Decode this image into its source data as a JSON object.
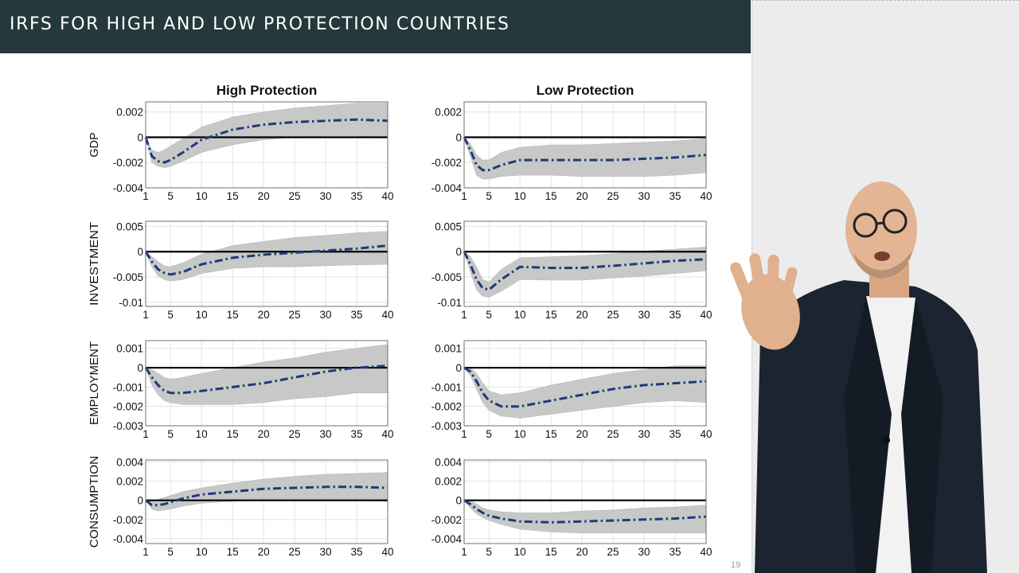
{
  "slide": {
    "title": "IRFS FOR HIGH AND LOW PROTECTION COUNTRIES",
    "page_number": "19"
  },
  "colors": {
    "title_bar": "#25393c",
    "irf_line": "#1f3a78",
    "band": "#c8c8c8",
    "zero_line": "#000000",
    "presenter_bg": "#ececec"
  },
  "chart_data": [
    {
      "type": "line",
      "column_title": "High Protection",
      "ylabel": "GDP",
      "x": [
        1,
        2,
        3,
        4,
        5,
        7,
        10,
        15,
        20,
        25,
        30,
        35,
        40
      ],
      "series": [
        {
          "role": "irf",
          "values": [
            0,
            -0.0015,
            -0.0019,
            -0.002,
            -0.0018,
            -0.0012,
            -0.0002,
            0.0006,
            0.001,
            0.0012,
            0.0013,
            0.0014,
            0.0013
          ]
        },
        {
          "role": "band_upper",
          "values": [
            0,
            -0.001,
            -0.0012,
            -0.001,
            -0.0007,
            -0.0001,
            0.0008,
            0.0016,
            0.002,
            0.0023,
            0.0025,
            0.0027,
            0.0027
          ]
        },
        {
          "role": "band_lower",
          "values": [
            0,
            -0.002,
            -0.0023,
            -0.0024,
            -0.0023,
            -0.0019,
            -0.0012,
            -0.0006,
            -0.0002,
            0.0,
            0.0001,
            0.0001,
            0.0
          ]
        }
      ],
      "yticks": [
        -0.004,
        -0.002,
        0,
        0.002
      ],
      "ylim": [
        -0.004,
        0.0028
      ],
      "xticks": [
        1,
        5,
        10,
        15,
        20,
        25,
        30,
        35,
        40
      ],
      "xlim": [
        1,
        40
      ],
      "grid": true
    },
    {
      "type": "line",
      "column_title": "Low Protection",
      "ylabel": "",
      "x": [
        1,
        2,
        3,
        4,
        5,
        7,
        10,
        15,
        20,
        25,
        30,
        35,
        40
      ],
      "series": [
        {
          "role": "irf",
          "values": [
            0,
            -0.001,
            -0.0022,
            -0.0026,
            -0.0026,
            -0.0022,
            -0.0018,
            -0.0018,
            -0.0018,
            -0.0018,
            -0.0017,
            -0.0016,
            -0.0014
          ]
        },
        {
          "role": "band_upper",
          "values": [
            0,
            -0.0005,
            -0.0014,
            -0.0018,
            -0.0018,
            -0.0012,
            -0.0008,
            -0.0006,
            -0.0006,
            -0.0005,
            -0.0004,
            -0.0003,
            -0.0001
          ]
        },
        {
          "role": "band_lower",
          "values": [
            0,
            -0.0015,
            -0.003,
            -0.0033,
            -0.0033,
            -0.0031,
            -0.003,
            -0.003,
            -0.0031,
            -0.0031,
            -0.0031,
            -0.003,
            -0.0028
          ]
        }
      ],
      "yticks": [
        -0.004,
        -0.002,
        0,
        0.002
      ],
      "ylim": [
        -0.004,
        0.0028
      ],
      "xticks": [
        1,
        5,
        10,
        15,
        20,
        25,
        30,
        35,
        40
      ],
      "xlim": [
        1,
        40
      ],
      "grid": true
    },
    {
      "type": "line",
      "column_title": "",
      "ylabel": "INVESTMENT",
      "x": [
        1,
        2,
        3,
        4,
        5,
        7,
        10,
        15,
        20,
        25,
        30,
        35,
        40
      ],
      "series": [
        {
          "role": "irf",
          "values": [
            0,
            -0.002,
            -0.0035,
            -0.0042,
            -0.0045,
            -0.004,
            -0.0025,
            -0.0012,
            -0.0006,
            -0.0002,
            0.0002,
            0.0006,
            0.0012
          ]
        },
        {
          "role": "band_upper",
          "values": [
            0,
            -0.001,
            -0.002,
            -0.0028,
            -0.003,
            -0.0022,
            -0.0005,
            0.0012,
            0.002,
            0.0028,
            0.0032,
            0.0037,
            0.004
          ]
        },
        {
          "role": "band_lower",
          "values": [
            0,
            -0.003,
            -0.0048,
            -0.0055,
            -0.0058,
            -0.0055,
            -0.0043,
            -0.0033,
            -0.003,
            -0.003,
            -0.0028,
            -0.0026,
            -0.0025
          ]
        }
      ],
      "yticks": [
        -0.01,
        -0.005,
        0,
        0.005
      ],
      "ylim": [
        -0.0108,
        0.006
      ],
      "xticks": [
        1,
        5,
        10,
        15,
        20,
        25,
        30,
        35,
        40
      ],
      "xlim": [
        1,
        40
      ],
      "grid": true
    },
    {
      "type": "line",
      "column_title": "",
      "ylabel": "",
      "x": [
        1,
        2,
        3,
        4,
        5,
        7,
        10,
        15,
        20,
        25,
        30,
        35,
        40
      ],
      "series": [
        {
          "role": "irf",
          "values": [
            0,
            -0.0025,
            -0.0055,
            -0.0072,
            -0.0075,
            -0.0055,
            -0.003,
            -0.0032,
            -0.0032,
            -0.0028,
            -0.0023,
            -0.0018,
            -0.0015
          ]
        },
        {
          "role": "band_upper",
          "values": [
            0,
            -0.001,
            -0.003,
            -0.0055,
            -0.006,
            -0.0035,
            -0.0012,
            -0.001,
            -0.0008,
            -0.0004,
            0.0001,
            0.0005,
            0.0009
          ]
        },
        {
          "role": "band_lower",
          "values": [
            0,
            -0.004,
            -0.0075,
            -0.0088,
            -0.009,
            -0.0078,
            -0.0055,
            -0.0056,
            -0.0056,
            -0.0052,
            -0.0048,
            -0.0043,
            -0.0038
          ]
        }
      ],
      "yticks": [
        -0.01,
        -0.005,
        0,
        0.005
      ],
      "ylim": [
        -0.0108,
        0.006
      ],
      "xticks": [
        1,
        5,
        10,
        15,
        20,
        25,
        30,
        35,
        40
      ],
      "xlim": [
        1,
        40
      ],
      "grid": true
    },
    {
      "type": "line",
      "column_title": "",
      "ylabel": "EMPLOYMENT",
      "x": [
        1,
        2,
        3,
        4,
        5,
        7,
        10,
        15,
        20,
        25,
        30,
        35,
        40
      ],
      "series": [
        {
          "role": "irf",
          "values": [
            0,
            -0.0005,
            -0.0009,
            -0.0012,
            -0.0013,
            -0.0013,
            -0.0012,
            -0.001,
            -0.0008,
            -0.0005,
            -0.0002,
            0.0,
            0.0001
          ]
        },
        {
          "role": "band_upper",
          "values": [
            0,
            -0.0001,
            -0.0003,
            -0.0005,
            -0.0006,
            -0.0005,
            -0.0003,
            0.0,
            0.0003,
            0.0005,
            0.0008,
            0.001,
            0.0012
          ]
        },
        {
          "role": "band_lower",
          "values": [
            0,
            -0.0009,
            -0.0014,
            -0.0017,
            -0.0018,
            -0.0019,
            -0.0019,
            -0.0019,
            -0.0018,
            -0.0016,
            -0.0015,
            -0.0013,
            -0.0013
          ]
        }
      ],
      "yticks": [
        -0.003,
        -0.002,
        -0.001,
        0,
        0.001
      ],
      "ylim": [
        -0.003,
        0.0014
      ],
      "xticks": [
        1,
        5,
        10,
        15,
        20,
        25,
        30,
        35,
        40
      ],
      "xlim": [
        1,
        40
      ],
      "grid": true
    },
    {
      "type": "line",
      "column_title": "",
      "ylabel": "",
      "x": [
        1,
        2,
        3,
        4,
        5,
        7,
        10,
        15,
        20,
        25,
        30,
        35,
        40
      ],
      "series": [
        {
          "role": "irf",
          "values": [
            0,
            -0.0002,
            -0.0007,
            -0.0013,
            -0.0017,
            -0.002,
            -0.002,
            -0.0017,
            -0.0014,
            -0.0011,
            -0.0009,
            -0.0008,
            -0.0007
          ]
        },
        {
          "role": "band_upper",
          "values": [
            0,
            0.0,
            -0.0003,
            -0.0008,
            -0.0012,
            -0.0014,
            -0.0013,
            -0.0009,
            -0.0006,
            -0.0003,
            -0.0001,
            0.0001,
            0.0001
          ]
        },
        {
          "role": "band_lower",
          "values": [
            0,
            -0.0004,
            -0.0011,
            -0.0018,
            -0.0022,
            -0.0025,
            -0.0026,
            -0.0024,
            -0.0022,
            -0.002,
            -0.0018,
            -0.0017,
            -0.0018
          ]
        }
      ],
      "yticks": [
        -0.003,
        -0.002,
        -0.001,
        0,
        0.001
      ],
      "ylim": [
        -0.003,
        0.0014
      ],
      "xticks": [
        1,
        5,
        10,
        15,
        20,
        25,
        30,
        35,
        40
      ],
      "xlim": [
        1,
        40
      ],
      "grid": true
    },
    {
      "type": "line",
      "column_title": "",
      "ylabel": "CONSUMPTION",
      "x": [
        1,
        2,
        3,
        4,
        5,
        7,
        10,
        15,
        20,
        25,
        30,
        35,
        40
      ],
      "series": [
        {
          "role": "irf",
          "values": [
            0,
            -0.0005,
            -0.0005,
            -0.0004,
            -0.0002,
            0.0002,
            0.0006,
            0.0009,
            0.0012,
            0.0013,
            0.0014,
            0.0014,
            0.0013
          ]
        },
        {
          "role": "band_upper",
          "values": [
            0,
            0.0,
            0.0001,
            0.0003,
            0.0005,
            0.0009,
            0.0013,
            0.0018,
            0.0022,
            0.0025,
            0.0027,
            0.0028,
            0.0029
          ]
        },
        {
          "role": "band_lower",
          "values": [
            0,
            -0.0009,
            -0.0011,
            -0.001,
            -0.0009,
            -0.0006,
            -0.0003,
            -0.0001,
            0.0001,
            0.0001,
            0.0001,
            0.0,
            -0.0001
          ]
        }
      ],
      "yticks": [
        -0.004,
        -0.002,
        0,
        0.002,
        0.004
      ],
      "ylim": [
        -0.0045,
        0.0042
      ],
      "xticks": [
        1,
        5,
        10,
        15,
        20,
        25,
        30,
        35,
        40
      ],
      "xlim": [
        1,
        40
      ],
      "grid": true
    },
    {
      "type": "line",
      "column_title": "",
      "ylabel": "",
      "x": [
        1,
        2,
        3,
        4,
        5,
        7,
        10,
        15,
        20,
        25,
        30,
        35,
        40
      ],
      "series": [
        {
          "role": "irf",
          "values": [
            0,
            -0.0004,
            -0.0009,
            -0.0013,
            -0.0016,
            -0.0019,
            -0.0022,
            -0.0023,
            -0.0022,
            -0.0021,
            -0.002,
            -0.0019,
            -0.0017
          ]
        },
        {
          "role": "band_upper",
          "values": [
            0,
            0.0,
            -0.0004,
            -0.0008,
            -0.001,
            -0.0012,
            -0.0013,
            -0.0013,
            -0.0011,
            -0.001,
            -0.0008,
            -0.0007,
            -0.0005
          ]
        },
        {
          "role": "band_lower",
          "values": [
            0,
            -0.0008,
            -0.0014,
            -0.0018,
            -0.0021,
            -0.0025,
            -0.003,
            -0.0033,
            -0.0034,
            -0.0034,
            -0.0034,
            -0.0034,
            -0.0034
          ]
        }
      ],
      "yticks": [
        -0.004,
        -0.002,
        0,
        0.002,
        0.004
      ],
      "ylim": [
        -0.0045,
        0.0042
      ],
      "xticks": [
        1,
        5,
        10,
        15,
        20,
        25,
        30,
        35,
        40
      ],
      "xlim": [
        1,
        40
      ],
      "grid": true
    }
  ]
}
